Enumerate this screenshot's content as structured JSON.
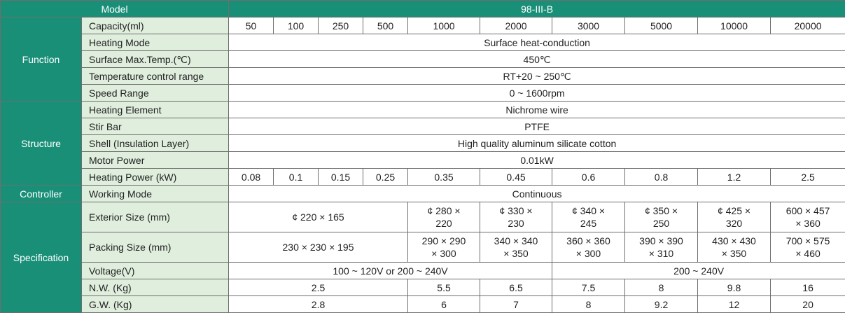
{
  "header": {
    "model_label": "Model",
    "model_value": "98-III-B"
  },
  "categories": {
    "function": "Function",
    "structure": "Structure",
    "controller": "Controller",
    "specification": "Specification"
  },
  "rows": {
    "capacity": {
      "label": "Capacity(ml)",
      "values": [
        "50",
        "100",
        "250",
        "500",
        "1000",
        "2000",
        "3000",
        "5000",
        "10000",
        "20000"
      ]
    },
    "heating_mode": {
      "label": "Heating Mode",
      "value": "Surface heat-conduction"
    },
    "surface_max_temp": {
      "label": "Surface Max.Temp.(℃)",
      "value": "450℃"
    },
    "temp_control_range": {
      "label": "Temperature control range",
      "value": "RT+20 ~ 250℃"
    },
    "speed_range": {
      "label": "Speed Range",
      "value": "0 ~ 1600rpm"
    },
    "heating_element": {
      "label": "Heating Element",
      "value": "Nichrome wire"
    },
    "stir_bar": {
      "label": "Stir Bar",
      "value": "PTFE"
    },
    "shell": {
      "label": "Shell (Insulation Layer)",
      "value": "High quality aluminum silicate cotton"
    },
    "motor_power": {
      "label": "Motor Power",
      "value": "0.01kW"
    },
    "heating_power": {
      "label": "Heating Power (kW)",
      "values": [
        "0.08",
        "0.1",
        "0.15",
        "0.25",
        "0.35",
        "0.45",
        "0.6",
        "0.8",
        "1.2",
        "2.5"
      ]
    },
    "working_mode": {
      "label": "Working Mode",
      "value": "Continuous"
    },
    "exterior_size": {
      "label": "Exterior Size (mm)",
      "values": [
        "¢ 220 × 165",
        "¢ 280 ×\n220",
        "¢ 330 ×\n230",
        "¢ 340 ×\n245",
        "¢ 350 ×\n250",
        "¢ 425 ×\n320",
        "600 × 457\n× 360"
      ]
    },
    "packing_size": {
      "label": "Packing Size (mm)",
      "values": [
        "230 × 230 × 195",
        "290 × 290\n× 300",
        "340 × 340\n× 350",
        "360 × 360\n× 300",
        "390 × 390\n× 310",
        "430 × 430\n× 350",
        "700 × 575\n× 460"
      ]
    },
    "voltage": {
      "label": "Voltage(V)",
      "values": [
        "100 ~ 120V or 200 ~ 240V",
        "200 ~ 240V"
      ]
    },
    "nw": {
      "label": "N.W. (Kg)",
      "values": [
        "2.5",
        "5.5",
        "6.5",
        "7.5",
        "8",
        "9.8",
        "16"
      ]
    },
    "gw": {
      "label": "G.W. (Kg)",
      "values": [
        "2.8",
        "6",
        "7",
        "8",
        "9.2",
        "12",
        "20"
      ]
    }
  },
  "colors": {
    "header_bg": "#1a8f78",
    "label_bg": "#dfeedd",
    "border": "#6e6e6e"
  }
}
